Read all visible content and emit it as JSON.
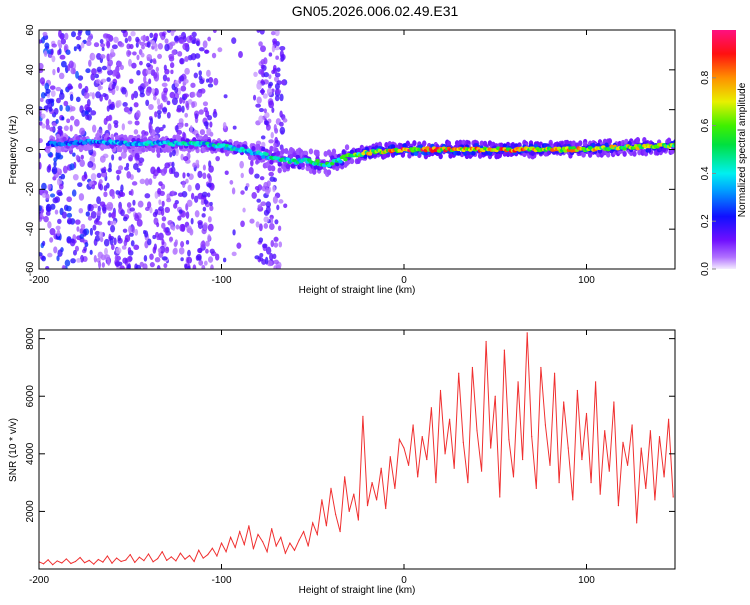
{
  "title": "GN05.2026.006.02.49.E31",
  "chart_data": [
    {
      "type": "heatmap",
      "xlabel": "Height of straight line (km)",
      "ylabel": "Frequency (Hz)",
      "xlim": [
        -200,
        148.5
      ],
      "ylim": [
        -60,
        60
      ],
      "xticks": [
        "-200",
        "-100",
        "0",
        "100"
      ],
      "xtick_values": [
        -200,
        -100,
        0,
        100
      ],
      "yticks": [
        "-60",
        "-40",
        "-20",
        "0",
        "20",
        "40",
        "60"
      ],
      "ytick_values": [
        -60,
        -40,
        -20,
        0,
        20,
        40,
        60
      ],
      "colorbar": {
        "label": "Normalized spectral amplitude",
        "range": [
          0,
          1
        ],
        "ticks": [
          "0.0",
          "0.2",
          "0.4",
          "0.6",
          "0.8"
        ],
        "tick_values": [
          0,
          0.2,
          0.4,
          0.6,
          0.8
        ]
      },
      "ridge": [
        {
          "x": -190,
          "f": 3,
          "amp": 0.3
        },
        {
          "x": -170,
          "f": 4,
          "amp": 0.35
        },
        {
          "x": -150,
          "f": 3,
          "amp": 0.4
        },
        {
          "x": -130,
          "f": 3,
          "amp": 0.45
        },
        {
          "x": -110,
          "f": 3,
          "amp": 0.45
        },
        {
          "x": -95,
          "f": 1,
          "amp": 0.45
        },
        {
          "x": -80,
          "f": -2,
          "amp": 0.45
        },
        {
          "x": -70,
          "f": -5,
          "amp": 0.5
        },
        {
          "x": -55,
          "f": -6,
          "amp": 0.5
        },
        {
          "x": -40,
          "f": -7,
          "amp": 0.55
        },
        {
          "x": -30,
          "f": -3,
          "amp": 0.6
        },
        {
          "x": -15,
          "f": -1,
          "amp": 0.8
        },
        {
          "x": 0,
          "f": 0,
          "amp": 0.9
        },
        {
          "x": 30,
          "f": 0,
          "amp": 0.85
        },
        {
          "x": 60,
          "f": 0,
          "amp": 0.85
        },
        {
          "x": 90,
          "f": 0,
          "amp": 0.8
        },
        {
          "x": 120,
          "f": 1,
          "amp": 0.75
        },
        {
          "x": 148,
          "f": 2,
          "amp": 0.7
        }
      ],
      "noise_band_x": [
        -200,
        -65
      ],
      "noise_amp": 0.15
    },
    {
      "type": "line",
      "xlabel": "Height of straight line (km)",
      "ylabel": "SNR (10 * v/v)",
      "xlim": [
        -200,
        148.5
      ],
      "ylim": [
        0,
        8300
      ],
      "xticks": [
        "-200",
        "-100",
        "0",
        "100"
      ],
      "xtick_values": [
        -200,
        -100,
        0,
        100
      ],
      "yticks": [
        "2000",
        "4000",
        "6000",
        "8000"
      ],
      "ytick_values": [
        2000,
        4000,
        6000,
        8000
      ],
      "color": "#f03030",
      "x_start": -200,
      "x_step": 2.5,
      "values": [
        250,
        180,
        320,
        150,
        280,
        210,
        350,
        190,
        260,
        400,
        220,
        300,
        170,
        330,
        240,
        450,
        200,
        380,
        260,
        310,
        500,
        230,
        410,
        290,
        520,
        250,
        360,
        600,
        300,
        420,
        280,
        550,
        340,
        470,
        260,
        650,
        380,
        500,
        720,
        450,
        900,
        600,
        1100,
        750,
        1300,
        850,
        1500,
        700,
        1200,
        950,
        600,
        1400,
        800,
        1100,
        550,
        900,
        650,
        1000,
        1300,
        800,
        1600,
        1200,
        2400,
        1500,
        2800,
        1900,
        1300,
        3200,
        2000,
        2600,
        1700,
        5300,
        2200,
        3000,
        2400,
        3500,
        2100,
        3900,
        2800,
        4500,
        4200,
        3600,
        5000,
        3200,
        4600,
        3800,
        5600,
        3000,
        6200,
        4000,
        5200,
        3500,
        6800,
        4400,
        3000,
        7000,
        4800,
        3400,
        7900,
        4200,
        6000,
        2500,
        7600,
        4500,
        3200,
        6500,
        3800,
        8200,
        4600,
        2800,
        7000,
        5000,
        3600,
        6800,
        3000,
        5800,
        4200,
        2400,
        6200,
        3800,
        5400,
        3000,
        6500,
        2600,
        4800,
        3400,
        5800,
        2200,
        4400,
        3600,
        5000,
        1600,
        4200,
        2800,
        4800,
        2400,
        4600,
        3200,
        5200,
        2500
      ]
    }
  ]
}
